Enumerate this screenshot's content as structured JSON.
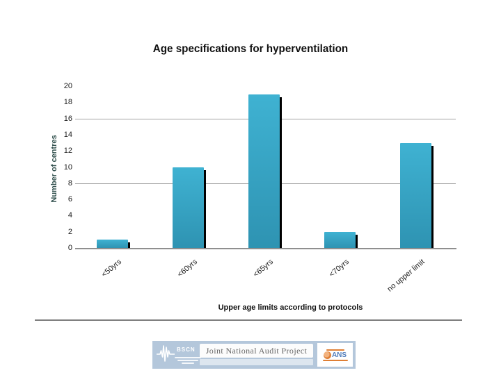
{
  "chart_data": {
    "type": "bar",
    "title": "Age specifications for hyperventilation",
    "xlabel": "Upper age limits according to protocols",
    "ylabel": "Number of centres",
    "categories": [
      "<50yrs",
      "<60yrs",
      "<65yrs",
      "<70yrs",
      "no upper limit"
    ],
    "values": [
      1,
      10,
      19,
      2,
      13
    ],
    "ylim": [
      0,
      20
    ],
    "ytick_step": 2,
    "gridlines_at": [
      8,
      16
    ],
    "grid": true,
    "legend": false,
    "bar_color_top": "#3fb2d2",
    "bar_color_bottom": "#2e93b2",
    "bar_shadow_color": "#000000",
    "gridline_color": "#a3a3a3",
    "axis_line_color": "#8f8f8f"
  },
  "footer": {
    "bscn_label": "BSCN",
    "project_title": "Joint National Audit Project",
    "ans_label": "ANS",
    "banner_background": "#b4c7db",
    "ans_accent_orange": "#df7f35",
    "ans_text_blue": "#4f7cba"
  }
}
